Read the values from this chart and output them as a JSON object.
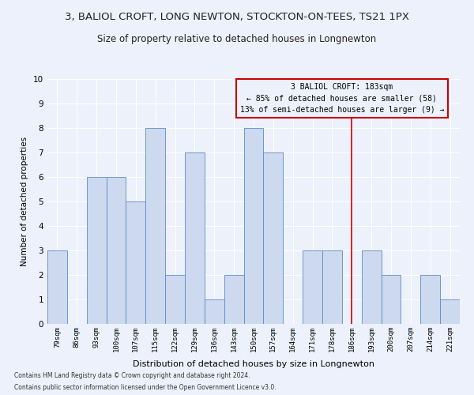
{
  "title": "3, BALIOL CROFT, LONG NEWTON, STOCKTON-ON-TEES, TS21 1PX",
  "subtitle": "Size of property relative to detached houses in Longnewton",
  "xlabel": "Distribution of detached houses by size in Longnewton",
  "ylabel": "Number of detached properties",
  "categories": [
    "79sqm",
    "86sqm",
    "93sqm",
    "100sqm",
    "107sqm",
    "115sqm",
    "122sqm",
    "129sqm",
    "136sqm",
    "143sqm",
    "150sqm",
    "157sqm",
    "164sqm",
    "171sqm",
    "178sqm",
    "186sqm",
    "193sqm",
    "200sqm",
    "207sqm",
    "214sqm",
    "221sqm"
  ],
  "values": [
    3,
    0,
    6,
    6,
    5,
    8,
    2,
    7,
    1,
    2,
    8,
    7,
    0,
    3,
    3,
    0,
    3,
    2,
    0,
    2,
    1
  ],
  "bar_color": "#ccd9ee",
  "bar_edge_color": "#5b8cc8",
  "property_line_x": 15.0,
  "annotation_title": "3 BALIOL CROFT: 183sqm",
  "annotation_line1": "← 85% of detached houses are smaller (58)",
  "annotation_line2": "13% of semi-detached houses are larger (9) →",
  "annotation_box_color": "#cc0000",
  "vline_color": "#cc0000",
  "footnote1": "Contains HM Land Registry data © Crown copyright and database right 2024.",
  "footnote2": "Contains public sector information licensed under the Open Government Licence v3.0.",
  "ylim": [
    0,
    10
  ],
  "yticks": [
    0,
    1,
    2,
    3,
    4,
    5,
    6,
    7,
    8,
    9,
    10
  ],
  "background_color": "#edf1fb",
  "grid_color": "#ffffff",
  "title_fontsize": 9.5,
  "subtitle_fontsize": 8.5,
  "xlabel_fontsize": 8,
  "ylabel_fontsize": 7.5,
  "tick_fontsize": 6.5,
  "annot_fontsize": 7,
  "footnote_fontsize": 5.5
}
